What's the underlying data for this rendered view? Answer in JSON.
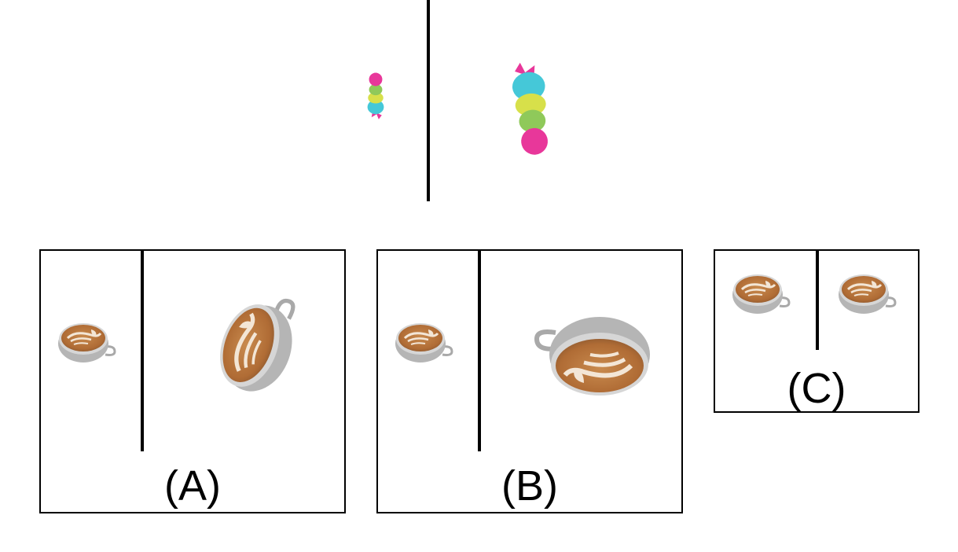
{
  "reference": {
    "left_object": "cake-pop-icon",
    "right_object": "cake-pop-icon"
  },
  "options": [
    {
      "label": "(A)",
      "left_object": "latte-cup-icon",
      "right_object": "latte-cup-icon"
    },
    {
      "label": "(B)",
      "left_object": "latte-cup-icon",
      "right_object": "latte-cup-icon"
    },
    {
      "label": "(C)",
      "left_object": "latte-cup-icon",
      "right_object": "latte-cup-icon"
    }
  ],
  "colors": {
    "border": "#000000",
    "coffee": "#b8733a",
    "foam": "#f3e6d6",
    "cup": "#c9c9c9",
    "pink": "#e8379a",
    "cyan": "#45c8d8",
    "yellow": "#d7e04a",
    "green": "#8fc95a"
  }
}
